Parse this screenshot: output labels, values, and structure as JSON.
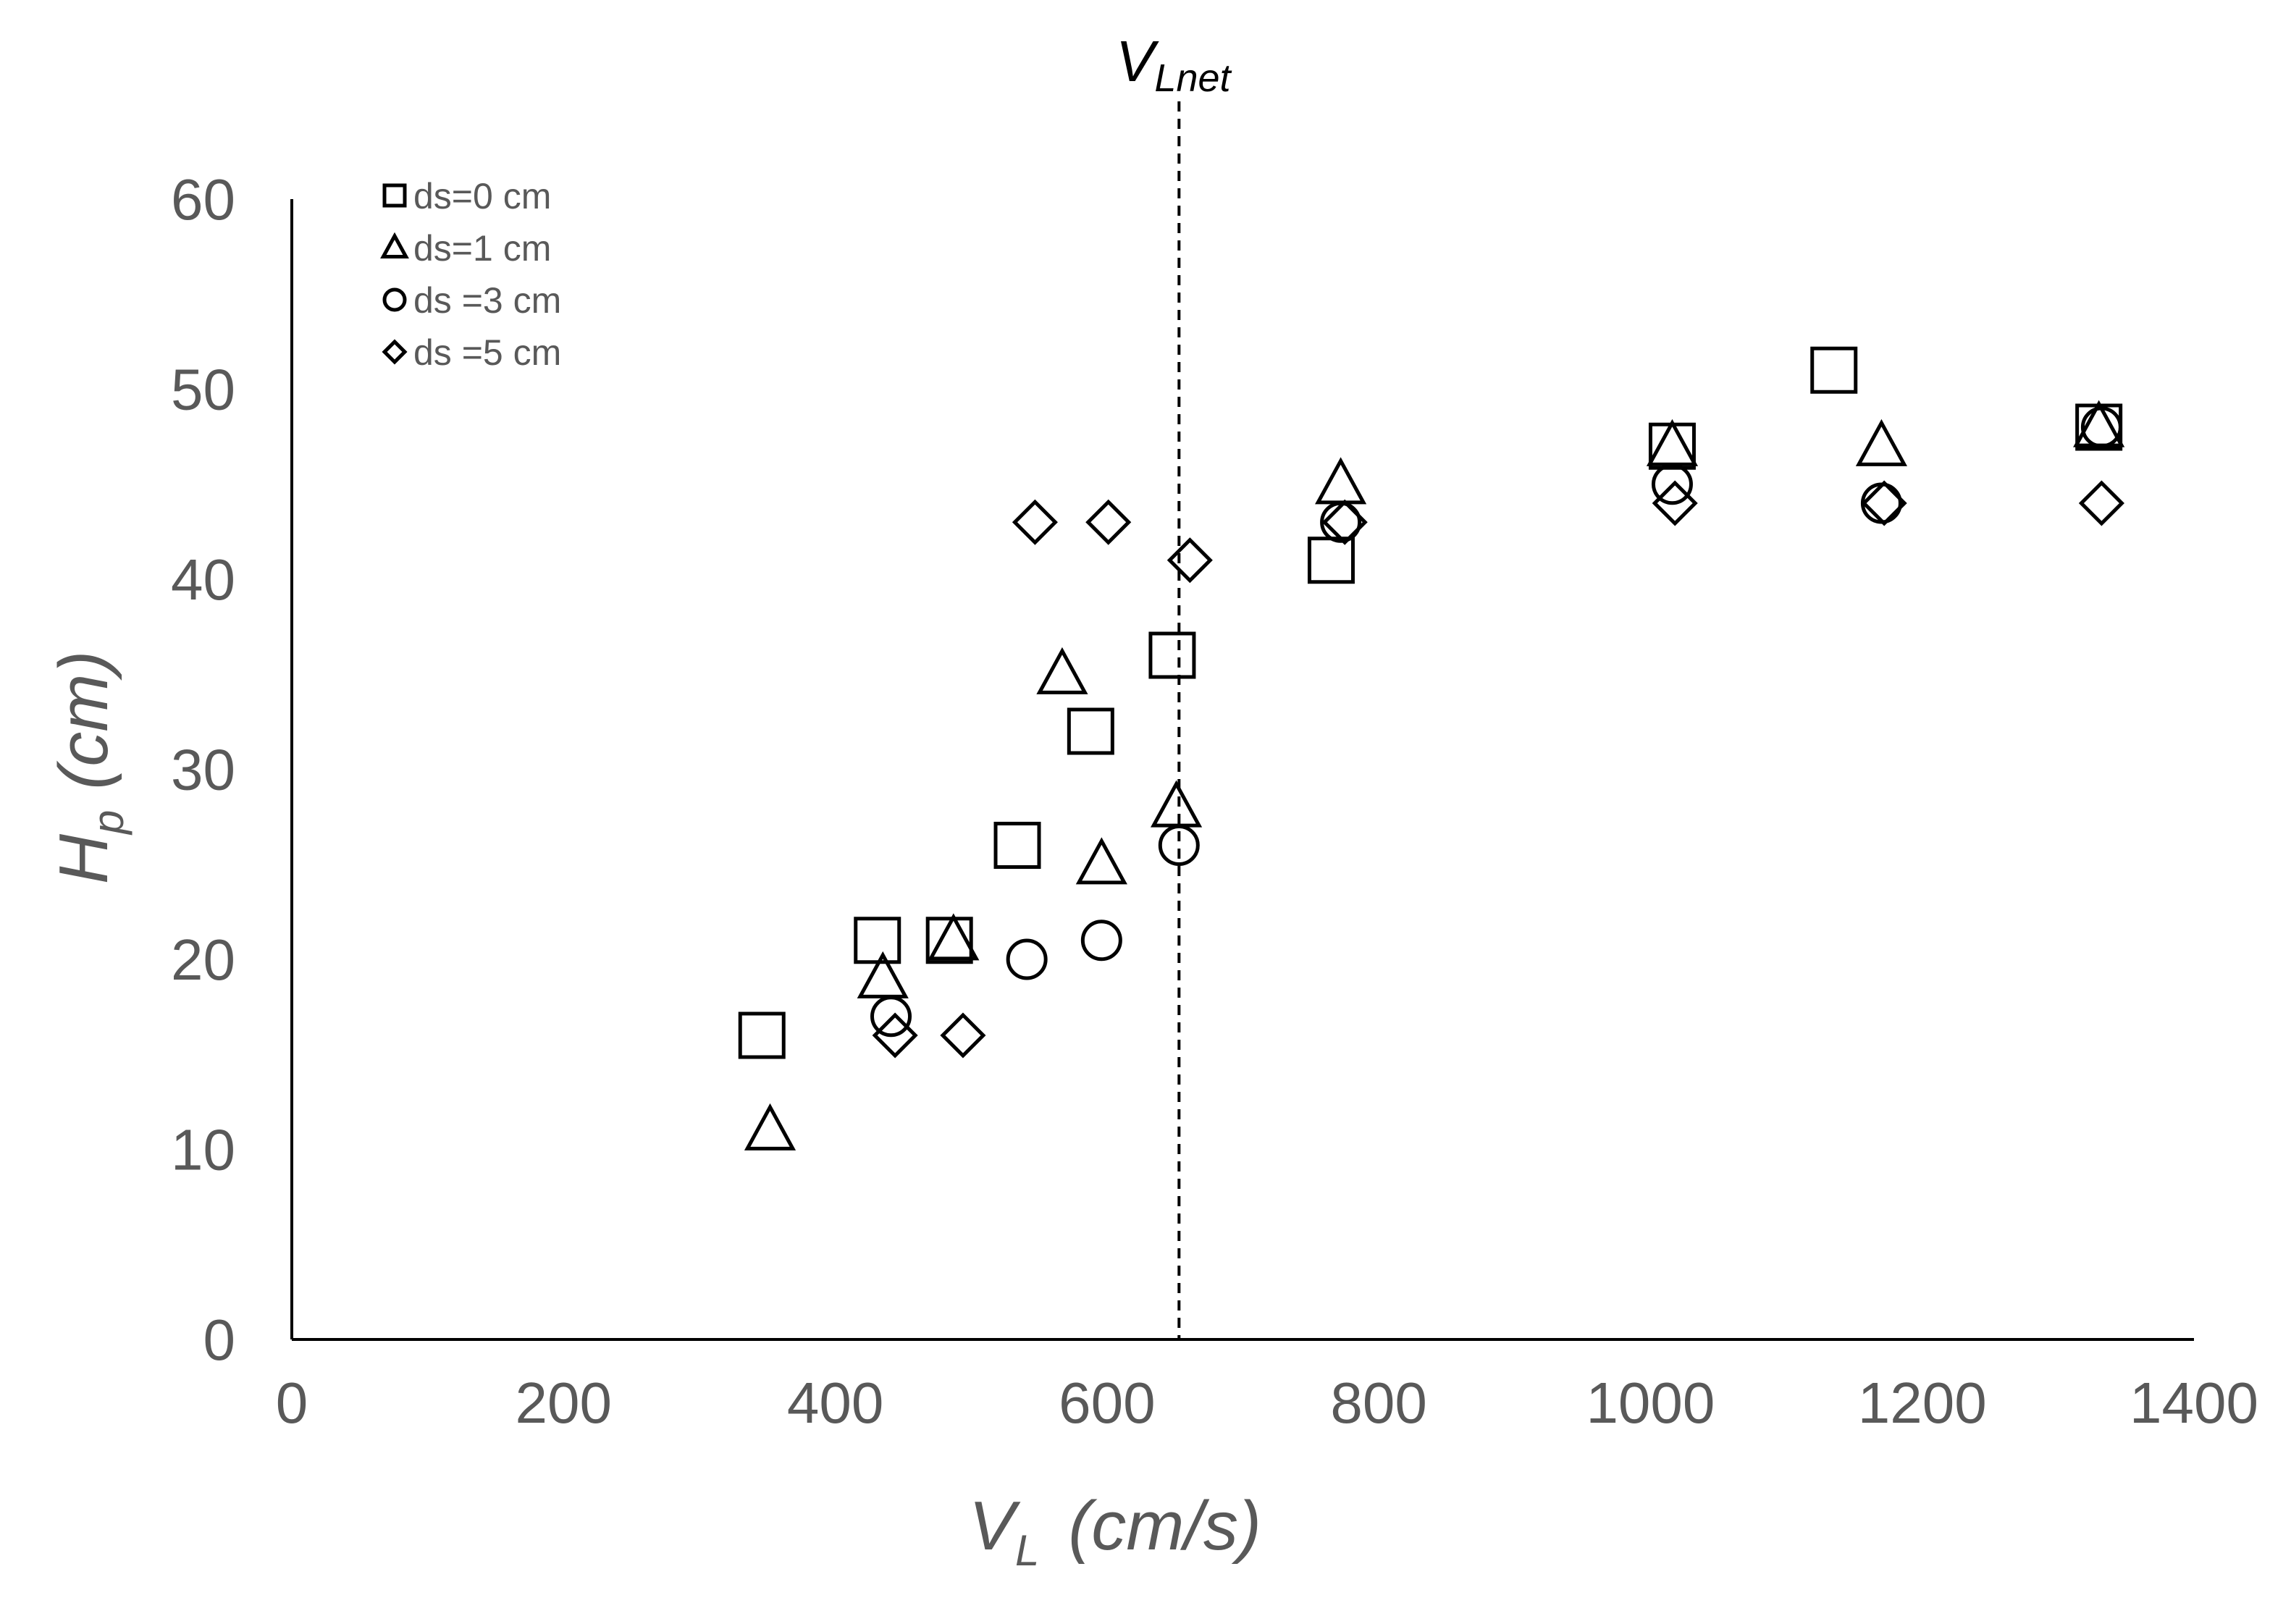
{
  "chart_data": {
    "type": "scatter",
    "title": "",
    "xlabel": {
      "main": "V",
      "sub": "L",
      "units": "(cm/s)"
    },
    "ylabel": {
      "main": "H",
      "sub": "p",
      "units": "(cm)"
    },
    "xlim": [
      0,
      1400
    ],
    "ylim": [
      0,
      60
    ],
    "xticks": [
      0,
      200,
      400,
      600,
      800,
      1000,
      1200,
      1400
    ],
    "yticks": [
      0,
      10,
      20,
      30,
      40,
      50,
      60
    ],
    "grid": false,
    "legend_position": "top-left",
    "reference_line": {
      "x": 653,
      "style": "dashed",
      "label_main": "V",
      "label_sub": "Lnet"
    },
    "series": [
      {
        "name": "ds=0 cm",
        "marker": "square",
        "points": [
          [
            346,
            16
          ],
          [
            431,
            21
          ],
          [
            484,
            21
          ],
          [
            534,
            26
          ],
          [
            588,
            32
          ],
          [
            648,
            36
          ],
          [
            765,
            41
          ],
          [
            1016,
            47
          ],
          [
            1135,
            51
          ],
          [
            1330,
            48
          ]
        ]
      },
      {
        "name": "ds=1 cm",
        "marker": "triangle",
        "points": [
          [
            352,
            11
          ],
          [
            435,
            19
          ],
          [
            487,
            21
          ],
          [
            567,
            35
          ],
          [
            596,
            25
          ],
          [
            651,
            28
          ],
          [
            772,
            45
          ],
          [
            1016,
            47
          ],
          [
            1170,
            47
          ],
          [
            1330,
            48
          ]
        ]
      },
      {
        "name": "ds =3 cm",
        "marker": "circle",
        "points": [
          [
            441,
            17
          ],
          [
            541,
            20
          ],
          [
            596,
            21
          ],
          [
            653,
            26
          ],
          [
            772,
            43
          ],
          [
            1016,
            45
          ],
          [
            1170,
            44
          ],
          [
            1332,
            48
          ]
        ]
      },
      {
        "name": "ds =5 cm",
        "marker": "diamond",
        "points": [
          [
            444,
            16
          ],
          [
            494,
            16
          ],
          [
            547,
            43
          ],
          [
            601,
            43
          ],
          [
            661,
            41
          ],
          [
            775,
            43
          ],
          [
            1018,
            44
          ],
          [
            1172,
            44
          ],
          [
            1332,
            44
          ]
        ]
      }
    ]
  }
}
